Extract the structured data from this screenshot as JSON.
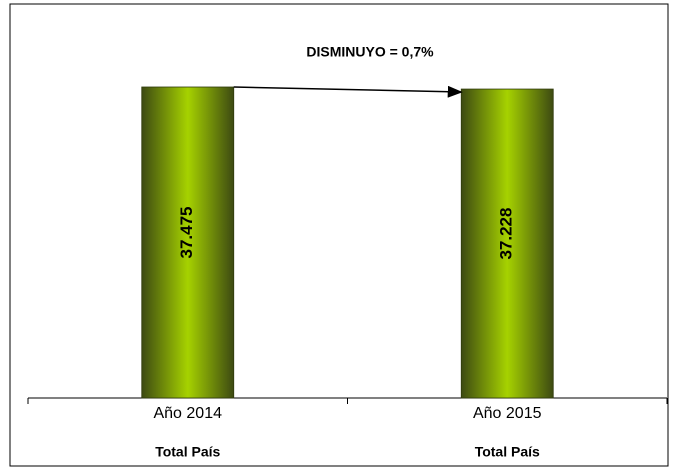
{
  "chart_data": {
    "type": "bar",
    "annotation": "DISMINUYO = 0,7%",
    "categories": [
      "Año 2014",
      "Año 2015"
    ],
    "sublabels": [
      "Total País",
      "Total País"
    ],
    "values": [
      37475,
      37228
    ],
    "value_labels": [
      "37.475",
      "37.228"
    ],
    "color": "#a6d200"
  }
}
